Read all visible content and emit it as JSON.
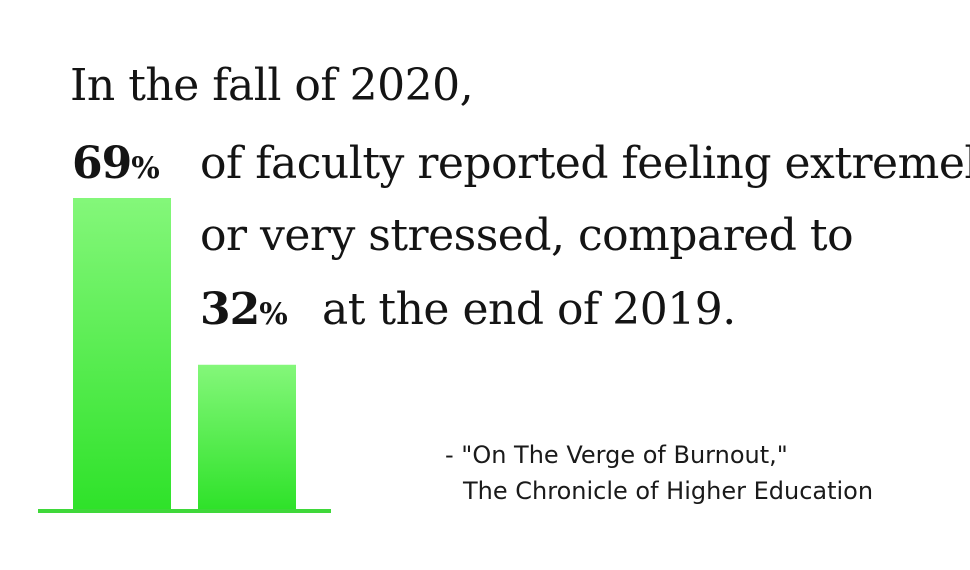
{
  "headline": "In the fall of 2020,",
  "statement": {
    "line1": "of faculty reported feeling extremely",
    "line2": "or very stressed, compared to",
    "line3": "at the end of 2019."
  },
  "chart_data": {
    "type": "bar",
    "categories": [
      "fall 2020",
      "end of 2019"
    ],
    "values": [
      69,
      32
    ],
    "value_labels": [
      "69",
      "32"
    ],
    "unit": "%",
    "ylim": [
      0,
      69
    ],
    "grid": false,
    "legend": "none",
    "colors": {
      "bar_top": "#84f77a",
      "bar_bottom": "#2fe22a",
      "baseline": "#3fd83a"
    }
  },
  "citation": {
    "line1": "- \"On The Verge of Burnout,\"",
    "line2": "The Chronicle of Higher Education"
  }
}
